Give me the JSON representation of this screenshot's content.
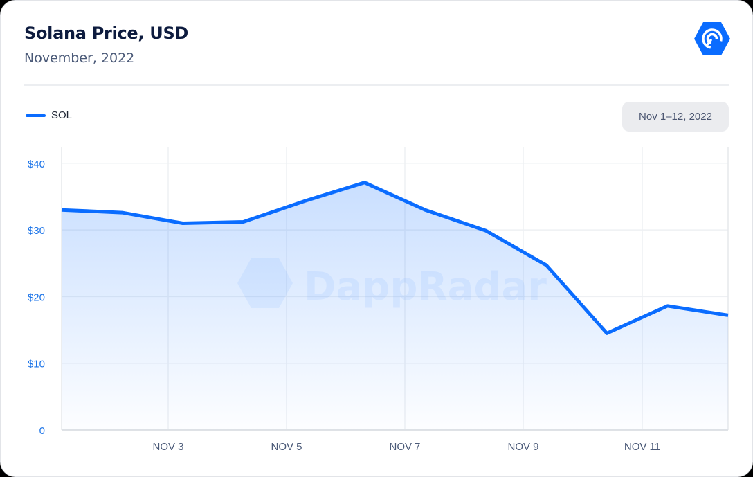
{
  "header": {
    "title": "Solana Price, USD",
    "subtitle": "November, 2022",
    "logo_icon": "dappradar-logo-icon"
  },
  "legend": [
    {
      "label": "SOL",
      "color": "#0a6cff"
    }
  ],
  "date_range": {
    "label": "Nov 1–12, 2022"
  },
  "watermark": {
    "text": "DappRadar"
  },
  "colors": {
    "accent": "#0a6cff",
    "title": "#0d1b3e",
    "subtitle": "#4b5a78",
    "ytick": "#1a73e8",
    "grid": "#eef0f3"
  },
  "chart_data": {
    "type": "area",
    "title": "Solana Price, USD",
    "subtitle": "November, 2022",
    "xlabel": "",
    "ylabel": "",
    "x": [
      "Nov 1",
      "Nov 2",
      "Nov 3",
      "Nov 4",
      "Nov 5",
      "Nov 6",
      "Nov 7",
      "Nov 8",
      "Nov 9",
      "Nov 10",
      "Nov 11",
      "Nov 12"
    ],
    "series": [
      {
        "name": "SOL",
        "values": [
          33.0,
          32.6,
          31.0,
          31.2,
          34.3,
          37.1,
          33.0,
          29.9,
          24.7,
          14.5,
          18.6,
          17.2
        ]
      }
    ],
    "x_tick_labels": [
      "NOV 3",
      "NOV 5",
      "NOV 7",
      "NOV 9",
      "NOV 11"
    ],
    "y_tick_labels": [
      "0",
      "$10",
      "$20",
      "$30",
      "$40"
    ],
    "y_ticks": [
      0,
      10,
      20,
      30,
      40
    ],
    "ylim": [
      0,
      42
    ],
    "grid": true,
    "legend_position": "top-left"
  }
}
